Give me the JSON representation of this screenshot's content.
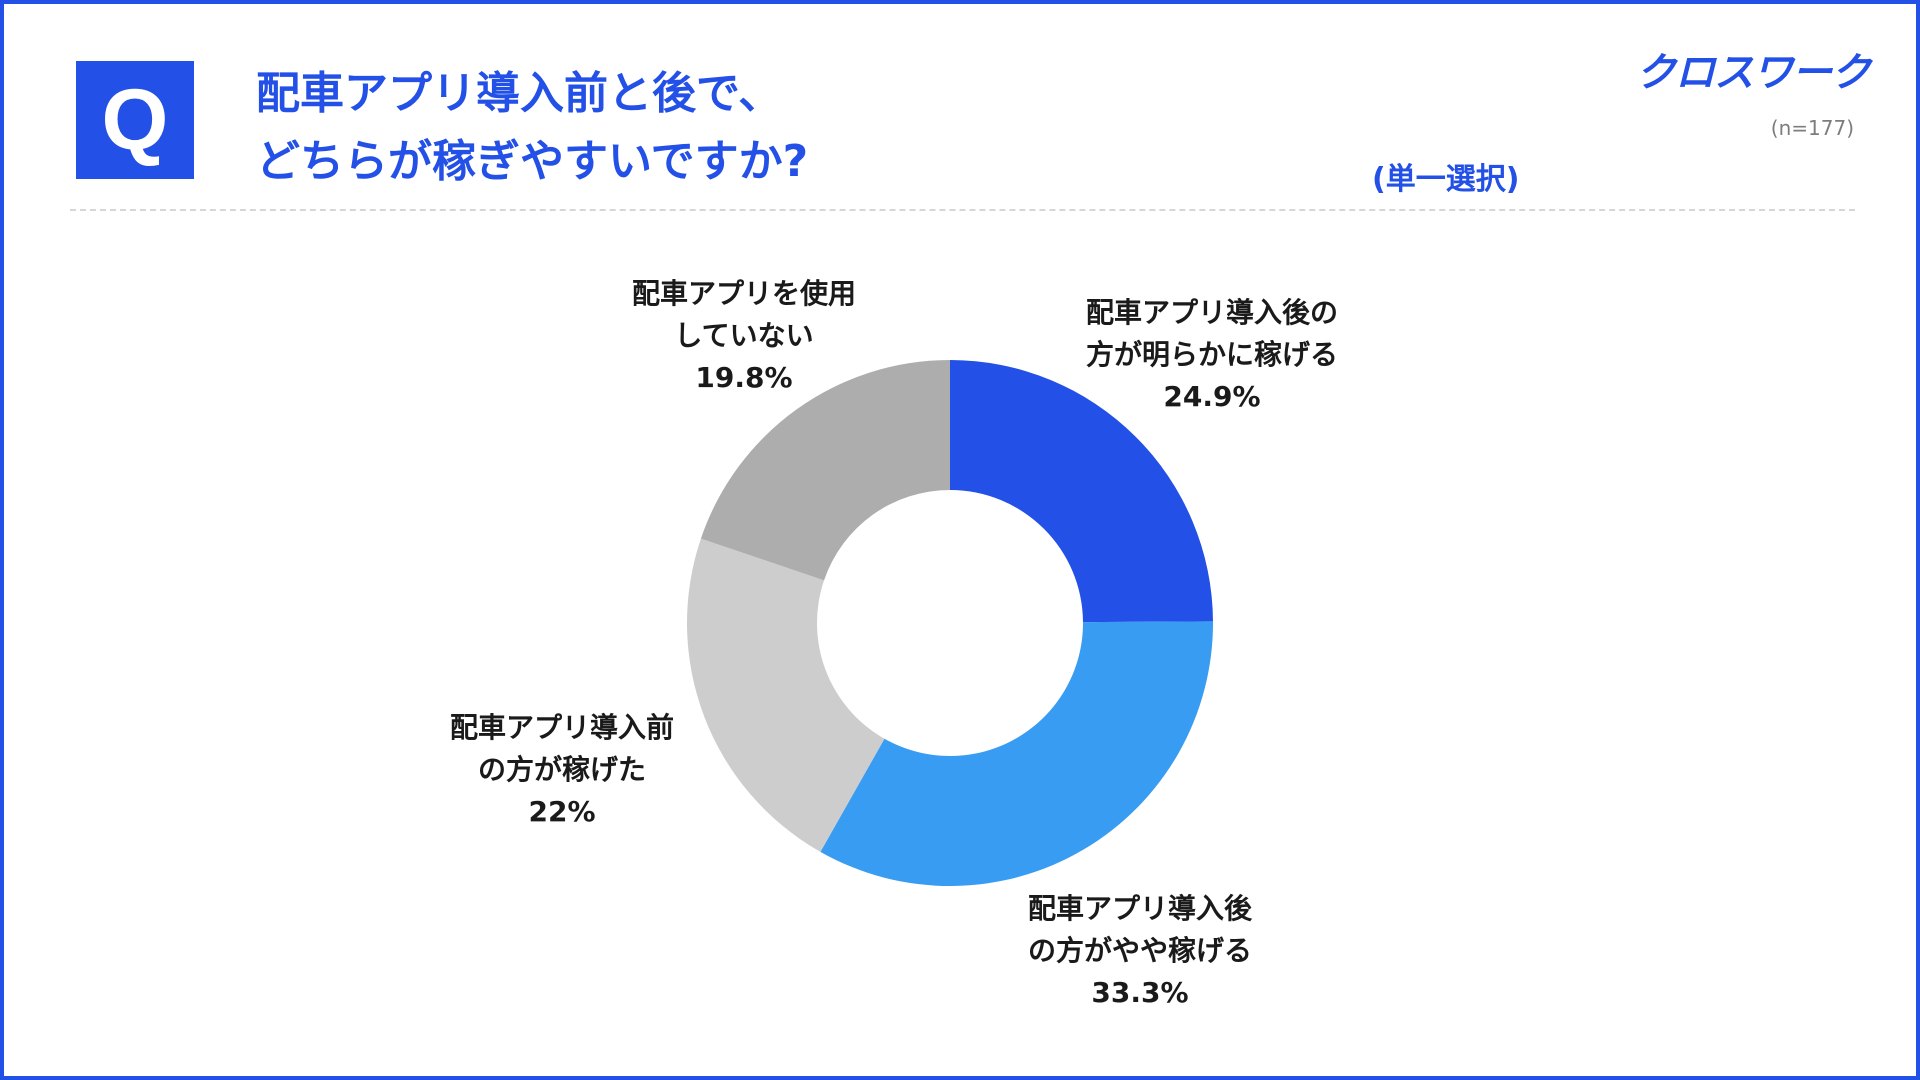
{
  "question": {
    "badge": "Q",
    "line1": "配車アプリ導入前と後で、",
    "line2": "どちらが稼ぎやすいですか?"
  },
  "brand": "クロスワーク",
  "sample": "(n=177)",
  "mode": "(単一選択)",
  "colors": {
    "accent": "#2350e6"
  },
  "chart_data": {
    "type": "pie",
    "donut": true,
    "start_angle_deg": 0,
    "direction": "clockwise",
    "slices": [
      {
        "label_lines": [
          "配車アプリ導入後の",
          "方が明らかに稼げる"
        ],
        "value_text": "24.9%",
        "value": 24.9,
        "color": "#2350e6"
      },
      {
        "label_lines": [
          "配車アプリ導入後",
          "の方がやや稼げる"
        ],
        "value_text": "33.3%",
        "value": 33.3,
        "color": "#389cf2"
      },
      {
        "label_lines": [
          "配車アプリ導入前",
          "の方が稼げた"
        ],
        "value_text": "22%",
        "value": 22,
        "color": "#cdcdcd"
      },
      {
        "label_lines": [
          "配車アプリを使用",
          "していない"
        ],
        "value_text": "19.8%",
        "value": 19.8,
        "color": "#adadad"
      }
    ]
  }
}
